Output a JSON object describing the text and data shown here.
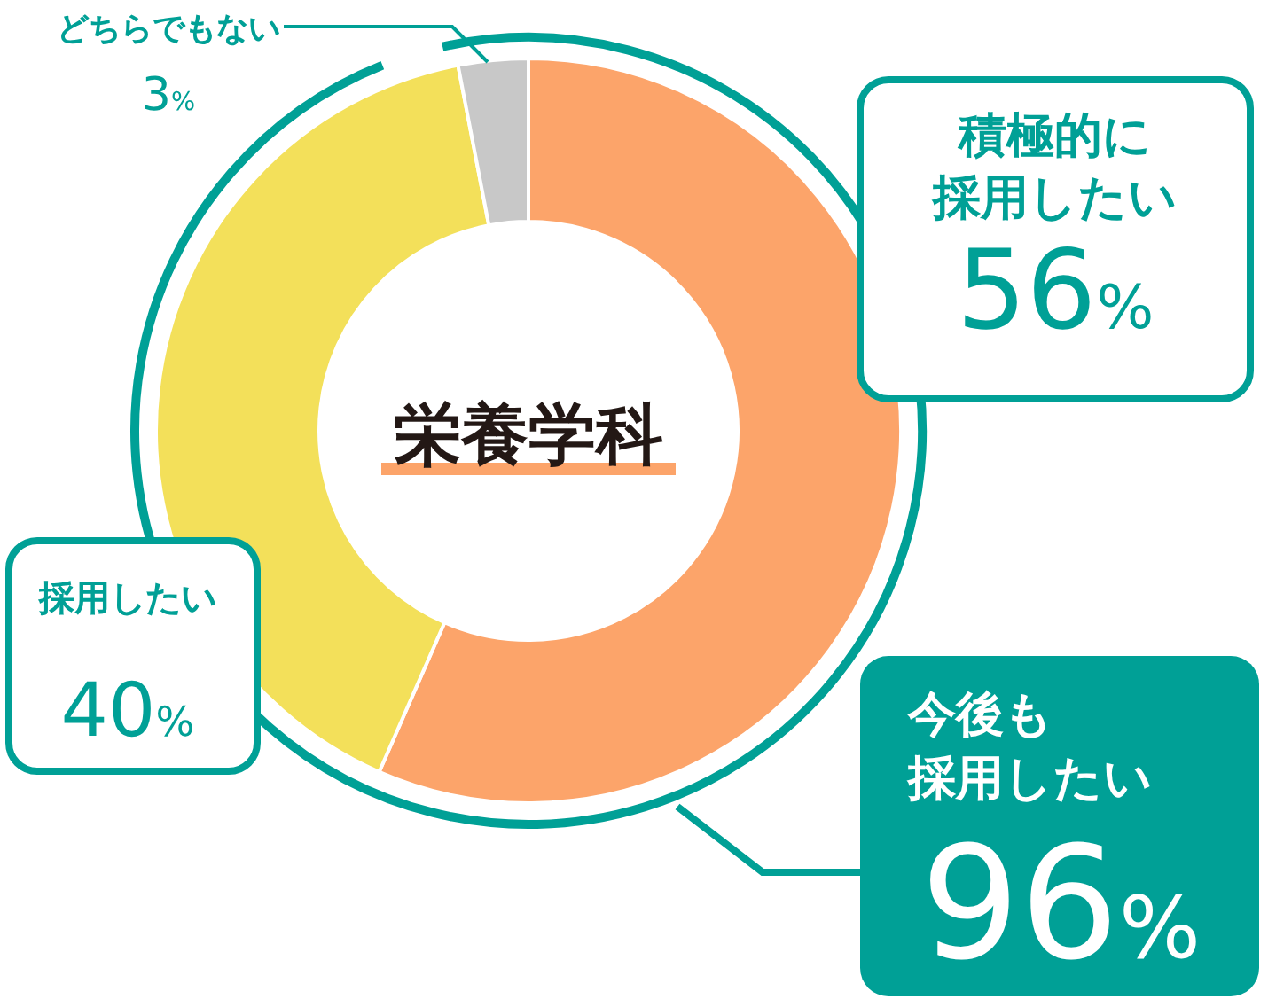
{
  "chart_data": {
    "type": "donut",
    "title": "栄養学科",
    "categories": [
      "積極的に採用したい",
      "採用したい",
      "どちらでもない"
    ],
    "values": [
      56,
      40,
      3
    ],
    "colors": [
      "#fca46a",
      "#f3e05a",
      "#c8c8c8"
    ],
    "value_labels": [
      "56%",
      "40%",
      "3%"
    ],
    "annotations": [
      "今後も採用したい",
      "96%"
    ]
  }
}
